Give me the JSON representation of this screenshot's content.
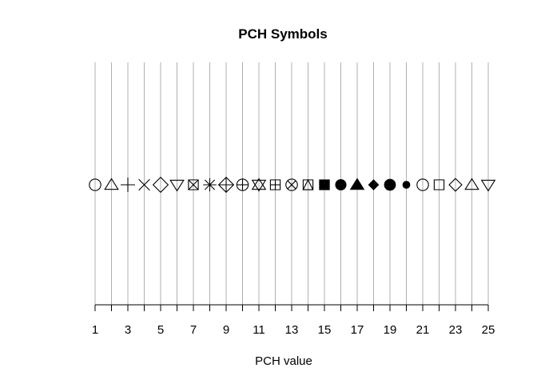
{
  "chart_data": {
    "type": "scatter",
    "title": "PCH Symbols",
    "xlabel": "PCH value",
    "ylabel": "",
    "xlim": [
      1,
      25
    ],
    "ylim": [
      0,
      2
    ],
    "grid": true,
    "x_ticks": [
      1,
      3,
      5,
      7,
      9,
      11,
      13,
      15,
      17,
      19,
      21,
      23,
      25
    ],
    "points": [
      {
        "x": 1,
        "y": 1,
        "pch": 1
      },
      {
        "x": 2,
        "y": 1,
        "pch": 2
      },
      {
        "x": 3,
        "y": 1,
        "pch": 3
      },
      {
        "x": 4,
        "y": 1,
        "pch": 4
      },
      {
        "x": 5,
        "y": 1,
        "pch": 5
      },
      {
        "x": 6,
        "y": 1,
        "pch": 6
      },
      {
        "x": 7,
        "y": 1,
        "pch": 7
      },
      {
        "x": 8,
        "y": 1,
        "pch": 8
      },
      {
        "x": 9,
        "y": 1,
        "pch": 9
      },
      {
        "x": 10,
        "y": 1,
        "pch": 10
      },
      {
        "x": 11,
        "y": 1,
        "pch": 11
      },
      {
        "x": 12,
        "y": 1,
        "pch": 12
      },
      {
        "x": 13,
        "y": 1,
        "pch": 13
      },
      {
        "x": 14,
        "y": 1,
        "pch": 14
      },
      {
        "x": 15,
        "y": 1,
        "pch": 15
      },
      {
        "x": 16,
        "y": 1,
        "pch": 16
      },
      {
        "x": 17,
        "y": 1,
        "pch": 17
      },
      {
        "x": 18,
        "y": 1,
        "pch": 18
      },
      {
        "x": 19,
        "y": 1,
        "pch": 19
      },
      {
        "x": 20,
        "y": 1,
        "pch": 20
      },
      {
        "x": 21,
        "y": 1,
        "pch": 21
      },
      {
        "x": 22,
        "y": 1,
        "pch": 22
      },
      {
        "x": 23,
        "y": 1,
        "pch": 23
      },
      {
        "x": 24,
        "y": 1,
        "pch": 24
      },
      {
        "x": 25,
        "y": 1,
        "pch": 25
      }
    ],
    "colors": {
      "grid": "#b0b0b0",
      "symbol": "#000000",
      "axis": "#000000"
    }
  }
}
